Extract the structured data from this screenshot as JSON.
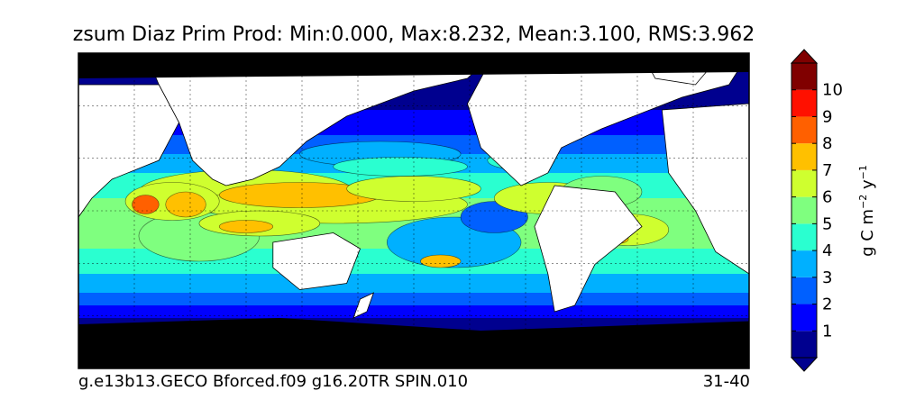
{
  "chart_data": {
    "type": "heatmap",
    "title": "zsum Diaz Prim Prod: Min:0.000, Max:8.232, Mean:3.100, RMS:3.962",
    "variable": "zsum Diaz Prim Prod",
    "stats": {
      "min": 0.0,
      "max": 8.232,
      "mean": 3.1,
      "rms": 3.962
    },
    "caption_left": "g.e13b13.GECO Bforced.f09 g16.20TR SPIN.010",
    "caption_right": "31-40",
    "projection": "cylindrical global map",
    "land_color": "#ffffff",
    "missing_color": "#000000",
    "gridlines": "dashed",
    "colorbar": {
      "label_main": "g C m",
      "label_exp1": "−2",
      "label_mid": " y",
      "label_exp2": "−1",
      "ticks": [
        "1",
        "2",
        "3",
        "4",
        "5",
        "6",
        "7",
        "8",
        "9",
        "10"
      ],
      "extend": "both",
      "levels": [
        {
          "range": [
            0,
            1
          ],
          "color": "#00008f"
        },
        {
          "range": [
            1,
            2
          ],
          "color": "#0000ff"
        },
        {
          "range": [
            2,
            3
          ],
          "color": "#0060ff"
        },
        {
          "range": [
            3,
            4
          ],
          "color": "#00b0ff"
        },
        {
          "range": [
            4,
            5
          ],
          "color": "#2affd0"
        },
        {
          "range": [
            5,
            6
          ],
          "color": "#7fff7f"
        },
        {
          "range": [
            6,
            7
          ],
          "color": "#cfff2f"
        },
        {
          "range": [
            7,
            8
          ],
          "color": "#ffc000"
        },
        {
          "range": [
            8,
            9
          ],
          "color": "#ff6000"
        },
        {
          "range": [
            9,
            10
          ],
          "color": "#ff1000"
        },
        {
          "range": [
            10,
            11
          ],
          "color": "#800000"
        }
      ],
      "under_color": "#00008f",
      "over_color": "#800000"
    }
  }
}
